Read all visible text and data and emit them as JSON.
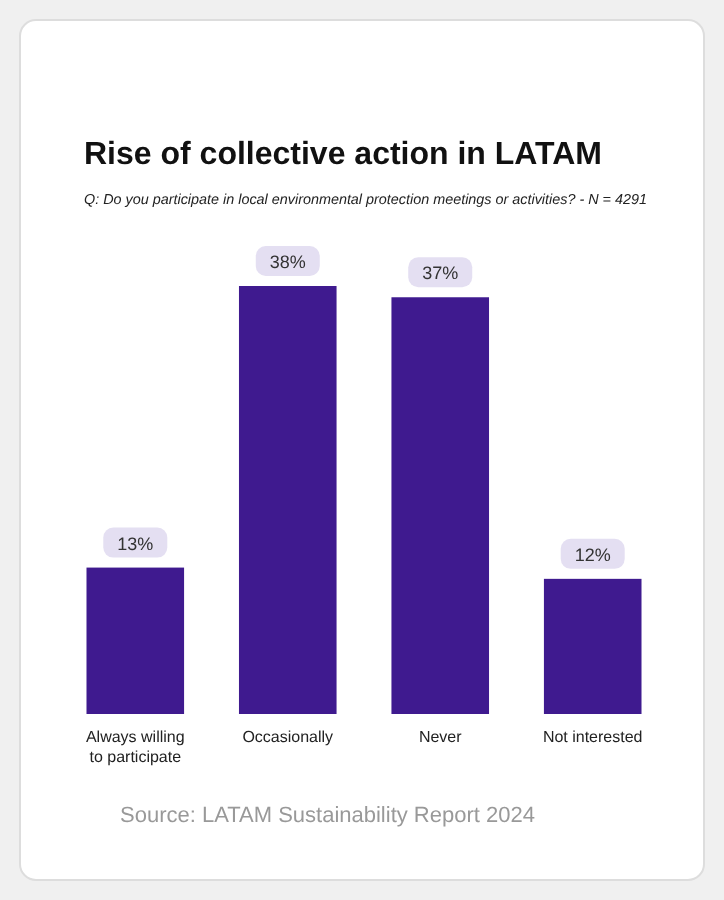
{
  "chart_data": {
    "type": "bar",
    "title": "Rise of collective action in LATAM",
    "subtitle": "Q:  Do you participate in local environmental protection meetings or activities? - N = 4291",
    "categories": [
      "Always willing to participate",
      "Occasionally",
      "Never",
      "Not interested"
    ],
    "values": [
      13,
      38,
      37,
      12
    ],
    "color": "#3f1a8f",
    "value_labels": [
      "13%",
      "38%",
      "37%",
      "12%"
    ],
    "annotations": [
      "Source: LATAM Sustainability Report 2024"
    ]
  }
}
